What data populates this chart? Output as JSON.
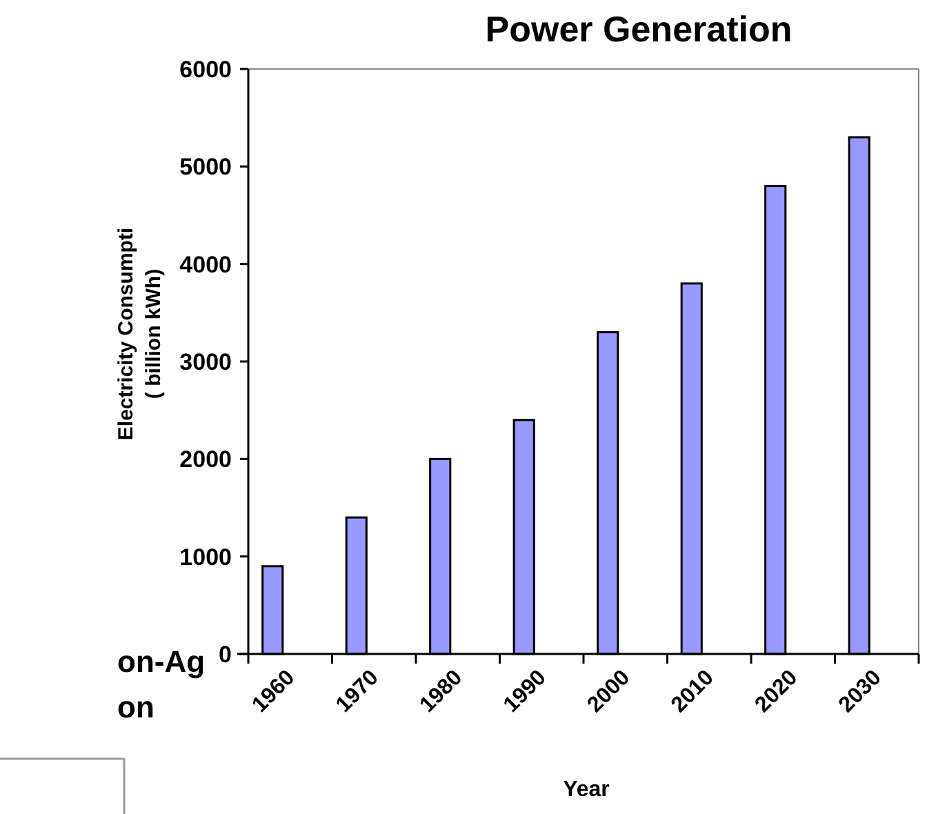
{
  "chart_data": {
    "type": "bar",
    "title": "Power Generation",
    "xlabel": "Year",
    "ylabel": "Electricity Consumpti\n( billion kWh)",
    "categories": [
      "1960",
      "1970",
      "1980",
      "1990",
      "2000",
      "2010",
      "2020",
      "2030"
    ],
    "values": [
      900,
      1400,
      2000,
      2400,
      3300,
      3800,
      4800,
      5300
    ],
    "color": "#9999ff",
    "ylim": [
      0,
      6000
    ],
    "yticks": [
      0,
      1000,
      2000,
      3000,
      4000,
      5000,
      6000
    ],
    "grid": false,
    "annotations": [
      "on-Ag",
      "on"
    ]
  }
}
